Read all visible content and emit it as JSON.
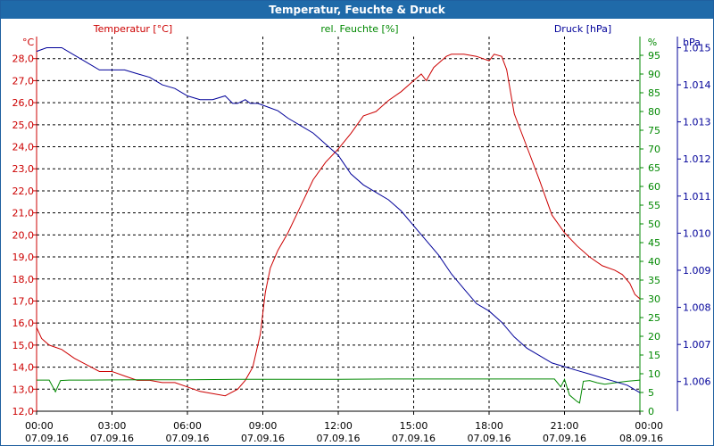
{
  "window": {
    "title": "Temperatur, Feuchte & Druck"
  },
  "colors": {
    "temperature": "#cc0000",
    "humidity": "#008800",
    "pressure": "#000099",
    "grid": "#000000",
    "titlebar": "#1f6aa9"
  },
  "chart_data": {
    "type": "line",
    "title": "Temperatur, Feuchte & Druck",
    "grid": true,
    "x": {
      "range_hours": [
        0,
        24
      ],
      "tick_hours": [
        0,
        3,
        6,
        9,
        12,
        15,
        18,
        21,
        24
      ],
      "tick_labels": [
        {
          "time": "00:00",
          "date": "07.09.16"
        },
        {
          "time": "03:00",
          "date": "07.09.16"
        },
        {
          "time": "06:00",
          "date": "07.09.16"
        },
        {
          "time": "09:00",
          "date": "07.09.16"
        },
        {
          "time": "12:00",
          "date": "07.09.16"
        },
        {
          "time": "15:00",
          "date": "07.09.16"
        },
        {
          "time": "18:00",
          "date": "07.09.16"
        },
        {
          "time": "21:00",
          "date": "07.09.16"
        },
        {
          "time": "00:00",
          "date": "08.09.16"
        }
      ]
    },
    "axes": {
      "temperature": {
        "label": "Temperatur [°C]",
        "unit": "°C",
        "range": [
          12,
          29
        ],
        "ticks": [
          "12,0",
          "13,0",
          "14,0",
          "15,0",
          "16,0",
          "17,0",
          "18,0",
          "19,0",
          "20,0",
          "21,0",
          "22,0",
          "23,0",
          "24,0",
          "25,0",
          "26,0",
          "27,0",
          "28,0"
        ]
      },
      "humidity": {
        "label": "rel. Feuchte [%]",
        "unit": "%",
        "range": [
          0,
          100
        ],
        "ticks": [
          "0",
          "5",
          "10",
          "15",
          "20",
          "25",
          "30",
          "35",
          "40",
          "45",
          "50",
          "55",
          "60",
          "65",
          "70",
          "75",
          "80",
          "85",
          "90",
          "95"
        ]
      },
      "pressure": {
        "label": "Druck [hPa]",
        "unit": "hPa",
        "range": [
          1.0052,
          1.0153
        ],
        "ticks": [
          "1.006",
          "1.007",
          "1.008",
          "1.009",
          "1.010",
          "1.011",
          "1.012",
          "1.013",
          "1.014",
          "1.015"
        ]
      }
    },
    "series": [
      {
        "name": "Temperatur",
        "axis": "temperature",
        "x": [
          0,
          0.2,
          0.5,
          1,
          1.5,
          2,
          2.5,
          3,
          3.5,
          4,
          4.5,
          5,
          5.5,
          6,
          6.5,
          7,
          7.5,
          8,
          8.3,
          8.6,
          8.9,
          9.1,
          9.3,
          9.6,
          10,
          10.5,
          11,
          11.5,
          12,
          12.5,
          13,
          13.5,
          14,
          14.5,
          15,
          15.3,
          15.5,
          15.8,
          16,
          16.3,
          16.5,
          17,
          17.5,
          18,
          18.2,
          18.5,
          18.7,
          19,
          19.5,
          20,
          20.5,
          21,
          21.5,
          22,
          22.5,
          23,
          23.3,
          23.6,
          23.8,
          24
        ],
        "values": [
          15.8,
          15.3,
          15.0,
          14.8,
          14.4,
          14.1,
          13.8,
          13.8,
          13.6,
          13.4,
          13.4,
          13.3,
          13.3,
          13.1,
          12.9,
          12.8,
          12.7,
          13.0,
          13.4,
          14.0,
          15.5,
          17.4,
          18.5,
          19.3,
          20.1,
          21.3,
          22.5,
          23.3,
          23.9,
          24.6,
          25.4,
          25.6,
          26.1,
          26.5,
          27.0,
          27.3,
          27.0,
          27.6,
          27.8,
          28.1,
          28.2,
          28.2,
          28.1,
          27.9,
          28.2,
          28.1,
          27.5,
          25.5,
          24.0,
          22.5,
          20.9,
          20.1,
          19.5,
          19.0,
          18.6,
          18.4,
          18.2,
          17.8,
          17.3,
          17.1
        ]
      },
      {
        "name": "rel. Feuchte",
        "axis": "humidity",
        "x": [
          0,
          0.5,
          0.75,
          0.95,
          1.3,
          2,
          4,
          6,
          8,
          10,
          12,
          14,
          16,
          18,
          20,
          20.6,
          20.85,
          21.0,
          21.2,
          21.5,
          21.6,
          21.75,
          22.0,
          22.3,
          22.6,
          22.9,
          23.5,
          24
        ],
        "values": [
          8.3,
          8.3,
          5.2,
          8.2,
          8.3,
          8.3,
          8.4,
          8.4,
          8.5,
          8.5,
          8.5,
          8.6,
          8.6,
          8.6,
          8.6,
          8.6,
          6.5,
          8.5,
          4.3,
          2.6,
          2.2,
          8.0,
          8.2,
          7.6,
          7.2,
          7.5,
          8.0,
          8.3
        ]
      },
      {
        "name": "Druck",
        "axis": "pressure",
        "x": [
          0,
          0.4,
          1.0,
          1.5,
          2.0,
          2.5,
          3.0,
          3.5,
          4.0,
          4.5,
          5.0,
          5.5,
          6.0,
          6.5,
          7.0,
          7.5,
          7.8,
          8.0,
          8.3,
          8.5,
          8.8,
          9.2,
          9.6,
          10.0,
          10.5,
          11.0,
          11.5,
          12.0,
          12.5,
          13.0,
          13.5,
          14.0,
          14.5,
          15.0,
          15.5,
          16.0,
          16.5,
          17.0,
          17.5,
          18.0,
          18.5,
          19.0,
          19.5,
          20.0,
          20.5,
          21.0,
          21.5,
          22.0,
          22.5,
          23.0,
          23.5,
          24.0
        ],
        "values": [
          1.0149,
          1.015,
          1.015,
          1.0148,
          1.0146,
          1.0144,
          1.0144,
          1.0144,
          1.0143,
          1.0142,
          1.014,
          1.0139,
          1.0137,
          1.0136,
          1.0136,
          1.0137,
          1.0135,
          1.0135,
          1.0136,
          1.0135,
          1.0135,
          1.0134,
          1.0133,
          1.0131,
          1.0129,
          1.0127,
          1.0124,
          1.0121,
          1.0116,
          1.0113,
          1.0111,
          1.0109,
          1.0106,
          1.0102,
          1.0098,
          1.0094,
          1.0089,
          1.0085,
          1.0081,
          1.0079,
          1.0076,
          1.0072,
          1.0069,
          1.0067,
          1.0065,
          1.0064,
          1.0063,
          1.0062,
          1.0061,
          1.006,
          1.0059,
          1.0057
        ]
      }
    ]
  }
}
